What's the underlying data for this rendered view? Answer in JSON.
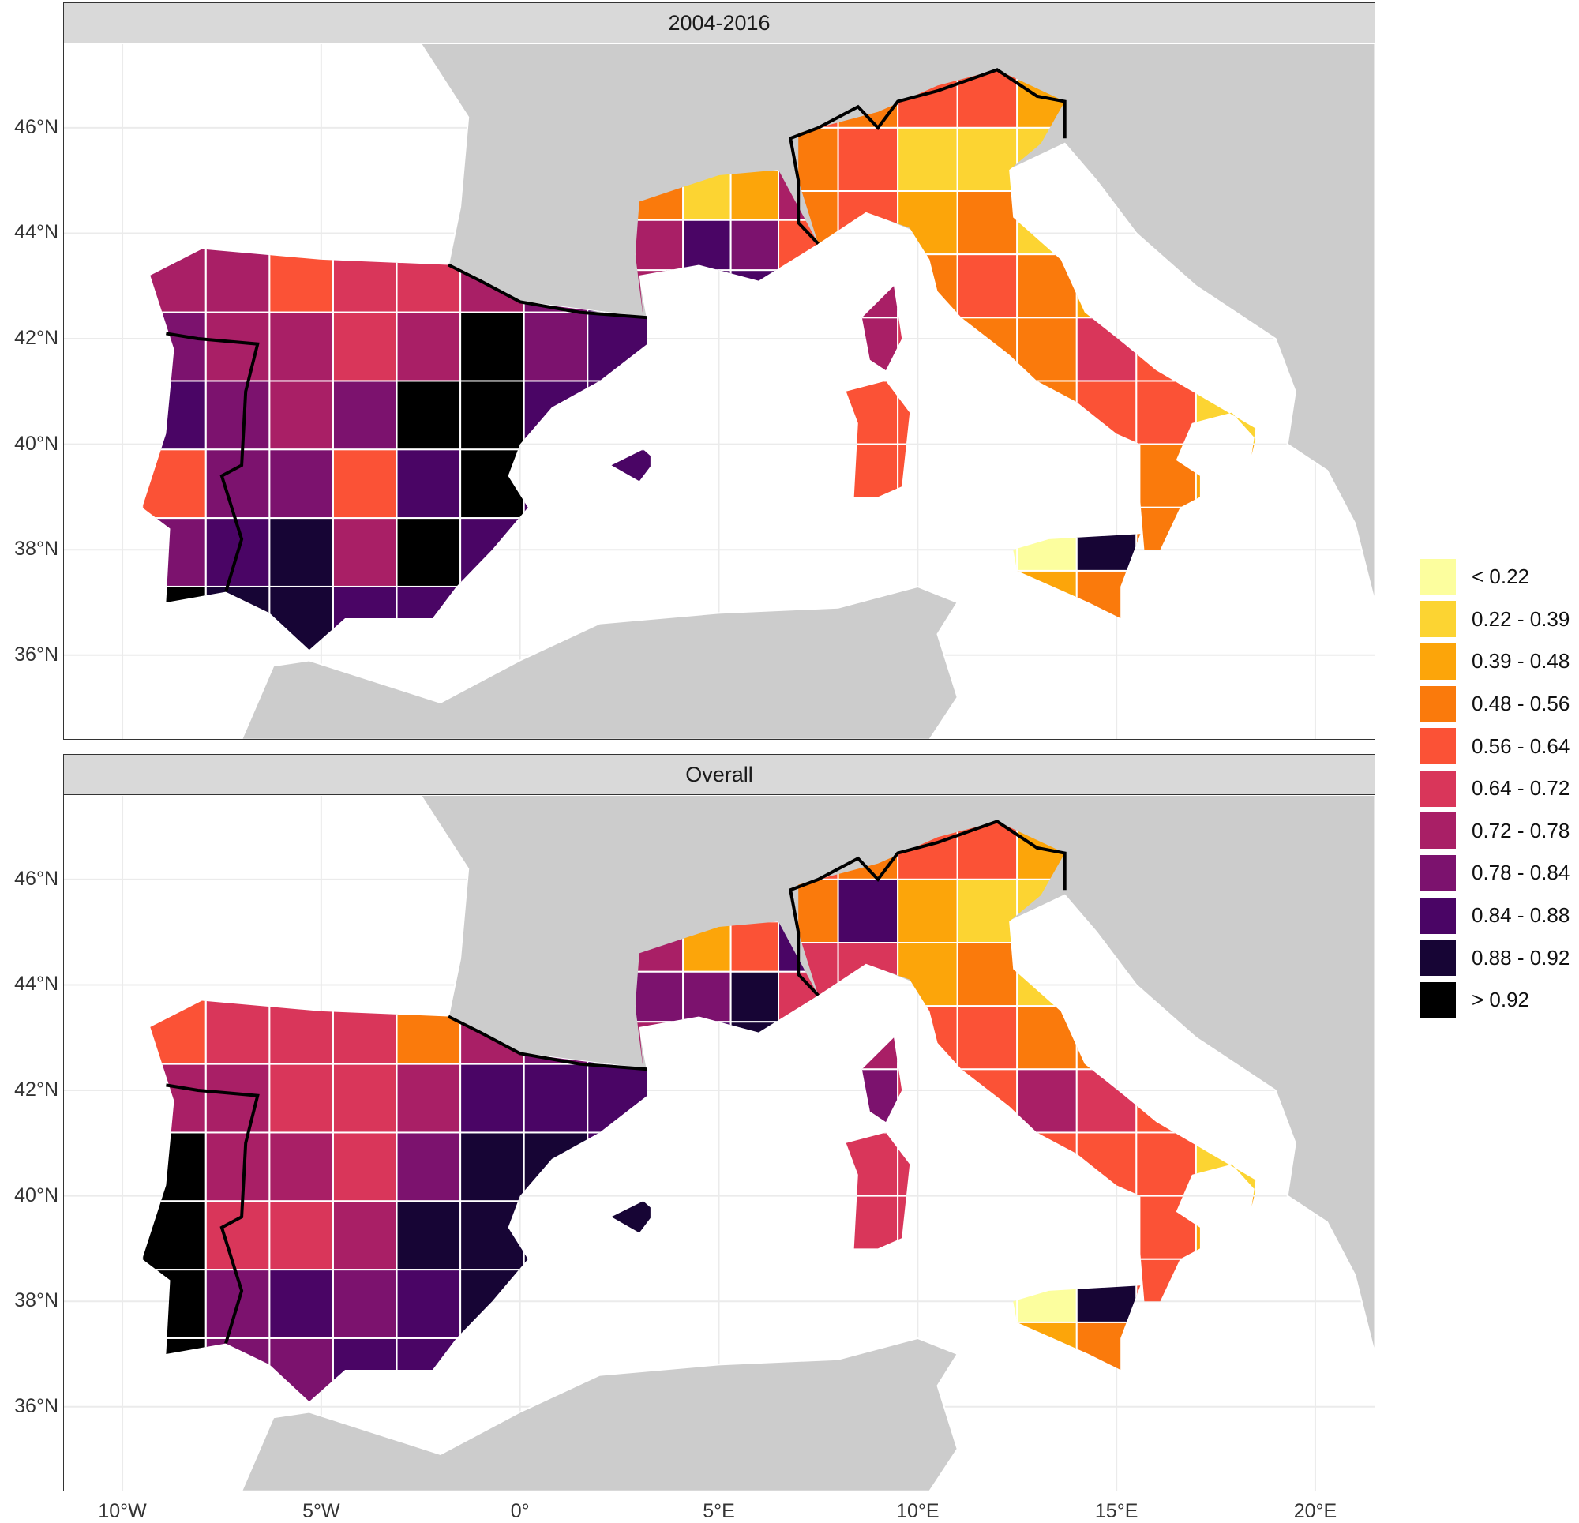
{
  "chart_data": {
    "type": "choropleth-map",
    "panels": [
      {
        "title": "2004-2016"
      },
      {
        "title": "Overall"
      }
    ],
    "x_ticks": [
      "10°W",
      "5°W",
      "0°",
      "5°E",
      "10°E",
      "15°E",
      "20°E"
    ],
    "x_tick_values": [
      -10,
      -5,
      0,
      5,
      10,
      15,
      20
    ],
    "y_ticks": [
      "46°N",
      "44°N",
      "42°N",
      "40°N",
      "38°N",
      "36°N"
    ],
    "y_tick_values": [
      46,
      44,
      42,
      40,
      38,
      36
    ],
    "xlim": [
      -11.47,
      21.49
    ],
    "ylim": [
      34.41,
      47.6
    ],
    "legend": {
      "placement": "right",
      "items": [
        {
          "label": "< 0.22",
          "color": "#fcfe9e"
        },
        {
          "label": "0.22 - 0.39",
          "color": "#fcd432"
        },
        {
          "label": "0.39 - 0.48",
          "color": "#fca50a"
        },
        {
          "label": "0.48 - 0.56",
          "color": "#fa7a0c"
        },
        {
          "label": "0.56 - 0.64",
          "color": "#fb5236"
        },
        {
          "label": "0.64 - 0.72",
          "color": "#d9365a"
        },
        {
          "label": "0.72 - 0.78",
          "color": "#a91f66"
        },
        {
          "label": "0.78 - 0.84",
          "color": "#7c126e"
        },
        {
          "label": "0.84 - 0.88",
          "color": "#4a0565"
        },
        {
          "label": "0.88 - 0.92",
          "color": "#170535"
        },
        {
          "label": "> 0.92",
          "color": "#000000"
        }
      ]
    },
    "region_classes": {
      "spain": [
        [
          [
            6,
            6,
            4,
            5,
            5,
            6,
            7,
            8
          ],
          [
            7,
            6,
            6,
            5,
            6,
            10,
            7,
            8
          ],
          [
            8,
            7,
            6,
            7,
            10,
            10,
            8,
            8
          ],
          [
            4,
            7,
            7,
            4,
            8,
            10,
            8,
            8
          ],
          [
            7,
            8,
            9,
            6,
            10,
            8,
            7,
            7
          ],
          [
            10,
            9,
            9,
            8,
            8,
            7,
            7,
            7
          ]
        ],
        [
          [
            4,
            5,
            5,
            5,
            3,
            6,
            7,
            8
          ],
          [
            6,
            6,
            5,
            5,
            6,
            8,
            8,
            8
          ],
          [
            10,
            6,
            6,
            5,
            7,
            9,
            9,
            8
          ],
          [
            10,
            5,
            5,
            6,
            9,
            9,
            9,
            9
          ],
          [
            10,
            7,
            8,
            7,
            8,
            9,
            9,
            9
          ],
          [
            10,
            7,
            7,
            8,
            8,
            8,
            8,
            8
          ]
        ]
      ],
      "italy": [
        [
          [
            4,
            3,
            4,
            4,
            2,
            1,
            2,
            2
          ],
          [
            3,
            4,
            1,
            1,
            1,
            0,
            0,
            0
          ],
          [
            3,
            4,
            2,
            3,
            1,
            2,
            4,
            2
          ],
          [
            6,
            6,
            3,
            4,
            3,
            2,
            2,
            2
          ],
          [
            6,
            6,
            5,
            3,
            3,
            5,
            4,
            4
          ],
          [
            6,
            4,
            4,
            3,
            3,
            4,
            4,
            1
          ],
          [
            4,
            4,
            4,
            4,
            3,
            3,
            3,
            2
          ],
          [
            3,
            3,
            3,
            0,
            0,
            9,
            3,
            3
          ],
          [
            3,
            3,
            3,
            1,
            2,
            3,
            3,
            3
          ]
        ],
        [
          [
            4,
            3,
            4,
            4,
            2,
            1,
            2,
            2
          ],
          [
            3,
            8,
            2,
            1,
            1,
            0,
            0,
            0
          ],
          [
            5,
            5,
            2,
            3,
            1,
            3,
            4,
            2
          ],
          [
            7,
            6,
            4,
            4,
            3,
            3,
            3,
            3
          ],
          [
            7,
            7,
            5,
            4,
            6,
            5,
            4,
            4
          ],
          [
            6,
            5,
            5,
            4,
            4,
            4,
            4,
            1
          ],
          [
            5,
            5,
            5,
            4,
            4,
            4,
            4,
            2
          ],
          [
            3,
            3,
            3,
            0,
            0,
            9,
            4,
            4
          ],
          [
            3,
            3,
            3,
            1,
            2,
            3,
            4,
            4
          ]
        ]
      ],
      "france": [
        [
          [
            3,
            1,
            2,
            6
          ],
          [
            6,
            8,
            7,
            4
          ],
          [
            6,
            8,
            8,
            7
          ]
        ],
        [
          [
            6,
            2,
            4,
            8
          ],
          [
            7,
            7,
            9,
            5
          ],
          [
            6,
            8,
            9,
            7
          ]
        ]
      ]
    }
  },
  "colors": {
    "land": "#cccccc",
    "border": "#000000",
    "region_outline": "#ffffff",
    "strip": "#d9d9d9"
  }
}
